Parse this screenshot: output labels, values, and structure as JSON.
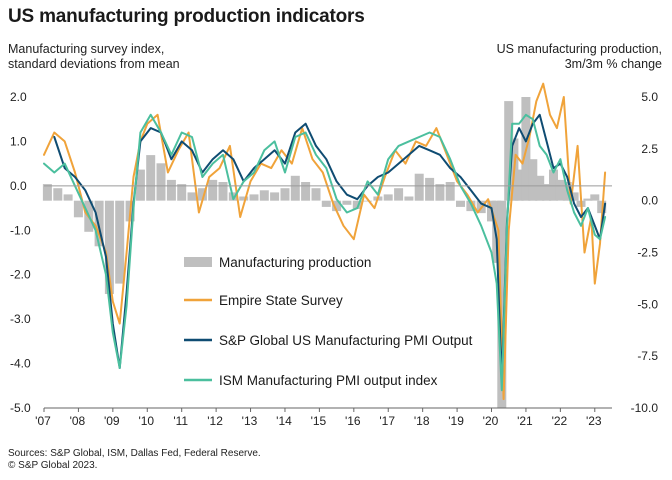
{
  "title": "US manufacturing production indicators",
  "left_axis_label": [
    "Manufacturing survey index,",
    "standard deviations from mean"
  ],
  "right_axis_label": [
    "US manufacturing production,",
    "3m/3m % change"
  ],
  "source_lines": [
    "Sources: S&P Global, ISM, Dallas Fed, Federal Reserve.",
    "© S&P Global 2023."
  ],
  "chart_data": {
    "type": "line",
    "x_tick_labels": [
      "'07",
      "'08",
      "'09",
      "'10",
      "'11",
      "'12",
      "'13",
      "'14",
      "'15",
      "'16",
      "'17",
      "'18",
      "'19",
      "'20",
      "'21",
      "'22",
      "'23"
    ],
    "x_range": [
      2007.0,
      2023.5
    ],
    "y_left": {
      "ticks": [
        "2.0",
        "1.0",
        "0.0",
        "-1.0",
        "-2.0",
        "-3.0",
        "-4.0",
        "-5.0"
      ],
      "range": [
        -5.0,
        2.0
      ]
    },
    "y_right": {
      "ticks": [
        "5.0",
        "2.5",
        "0.0",
        "-2.5",
        "-5.0",
        "-7.5",
        "-10.0"
      ],
      "range": [
        -10.0,
        5.0
      ]
    },
    "grid": false,
    "legend_placement": "center-left",
    "series": [
      {
        "name": "Manufacturing production",
        "type": "bar",
        "axis": "right",
        "color": "#bfbfbf",
        "x": [
          2007.1,
          2007.4,
          2007.7,
          2008.0,
          2008.3,
          2008.6,
          2008.9,
          2009.2,
          2009.5,
          2009.8,
          2010.1,
          2010.4,
          2010.7,
          2011.0,
          2011.3,
          2011.6,
          2011.9,
          2012.2,
          2012.5,
          2012.8,
          2013.1,
          2013.4,
          2013.7,
          2014.0,
          2014.3,
          2014.6,
          2014.9,
          2015.2,
          2015.5,
          2015.8,
          2016.1,
          2016.4,
          2016.7,
          2017.0,
          2017.3,
          2017.6,
          2017.9,
          2018.2,
          2018.5,
          2018.8,
          2019.1,
          2019.4,
          2019.7,
          2020.0,
          2020.15,
          2020.3,
          2020.5,
          2020.65,
          2020.8,
          2021.0,
          2021.2,
          2021.4,
          2021.6,
          2021.8,
          2022.0,
          2022.2,
          2022.4,
          2022.6,
          2022.8,
          2023.0,
          2023.2
        ],
        "values": [
          0.8,
          0.6,
          0.3,
          -0.8,
          -1.5,
          -2.2,
          -4.5,
          -4.0,
          -1.0,
          1.5,
          2.2,
          1.8,
          1.0,
          0.8,
          0.4,
          0.6,
          1.0,
          0.9,
          0.4,
          0.2,
          0.3,
          0.5,
          0.4,
          0.6,
          1.2,
          0.9,
          0.6,
          -0.3,
          -0.5,
          -0.2,
          -0.4,
          0.0,
          0.2,
          0.3,
          0.6,
          0.2,
          1.3,
          1.1,
          0.8,
          0.9,
          -0.3,
          -0.5,
          -0.6,
          -1.0,
          -3.0,
          -10.0,
          4.8,
          3.0,
          1.5,
          5.0,
          2.0,
          1.2,
          0.8,
          1.5,
          1.0,
          0.9,
          0.4,
          -0.3,
          0.1,
          0.3,
          -0.6
        ]
      },
      {
        "name": "Empire State Survey",
        "type": "line",
        "axis": "left",
        "color": "#f0a33a",
        "x": [
          2007.0,
          2007.3,
          2007.6,
          2007.9,
          2008.2,
          2008.5,
          2008.8,
          2009.0,
          2009.2,
          2009.4,
          2009.6,
          2009.8,
          2010.0,
          2010.3,
          2010.6,
          2010.9,
          2011.2,
          2011.5,
          2011.8,
          2012.1,
          2012.4,
          2012.7,
          2013.0,
          2013.3,
          2013.6,
          2013.9,
          2014.2,
          2014.5,
          2014.8,
          2015.1,
          2015.4,
          2015.7,
          2016.0,
          2016.3,
          2016.6,
          2016.9,
          2017.2,
          2017.5,
          2017.8,
          2018.1,
          2018.4,
          2018.7,
          2019.0,
          2019.3,
          2019.6,
          2019.9,
          2020.2,
          2020.35,
          2020.5,
          2020.7,
          2020.9,
          2021.1,
          2021.3,
          2021.5,
          2021.7,
          2021.9,
          2022.1,
          2022.3,
          2022.5,
          2022.7,
          2022.9,
          2023.0,
          2023.15,
          2023.3
        ],
        "values": [
          0.7,
          1.2,
          1.0,
          0.3,
          -0.6,
          -0.9,
          -1.5,
          -2.6,
          -3.1,
          -1.5,
          0.2,
          1.0,
          1.4,
          1.6,
          0.3,
          0.8,
          1.2,
          -0.6,
          0.2,
          0.4,
          0.9,
          -0.7,
          0.1,
          0.5,
          0.4,
          0.8,
          0.5,
          1.3,
          0.6,
          0.3,
          -0.4,
          -0.9,
          -1.2,
          -0.2,
          -0.5,
          0.2,
          0.8,
          0.5,
          1.0,
          0.9,
          1.3,
          0.7,
          0.1,
          -0.2,
          -0.6,
          -0.3,
          -1.0,
          -4.8,
          -1.0,
          0.7,
          0.5,
          1.1,
          1.9,
          2.3,
          1.6,
          1.3,
          2.0,
          -0.4,
          0.9,
          -1.5,
          -0.7,
          -2.2,
          -1.3,
          0.3
        ]
      },
      {
        "name": "S&P Global US Manufacturing PMI Output",
        "type": "line",
        "axis": "left",
        "color": "#0f4c72",
        "x": [
          2007.3,
          2007.6,
          2007.9,
          2008.2,
          2008.5,
          2008.8,
          2009.0,
          2009.2,
          2009.4,
          2009.6,
          2009.8,
          2010.1,
          2010.4,
          2010.7,
          2011.0,
          2011.3,
          2011.6,
          2011.9,
          2012.2,
          2012.5,
          2012.8,
          2013.1,
          2013.4,
          2013.7,
          2014.0,
          2014.3,
          2014.6,
          2014.9,
          2015.2,
          2015.5,
          2015.8,
          2016.1,
          2016.4,
          2016.7,
          2017.0,
          2017.3,
          2017.6,
          2017.9,
          2018.2,
          2018.5,
          2018.8,
          2019.1,
          2019.4,
          2019.7,
          2020.0,
          2020.15,
          2020.3,
          2020.45,
          2020.6,
          2020.8,
          2021.0,
          2021.2,
          2021.4,
          2021.6,
          2021.8,
          2022.0,
          2022.2,
          2022.4,
          2022.6,
          2022.8,
          2023.0,
          2023.15,
          2023.3
        ],
        "values": [
          1.1,
          0.4,
          0.2,
          -0.1,
          -0.6,
          -1.6,
          -3.1,
          -4.1,
          -2.4,
          -0.4,
          1.0,
          1.3,
          1.2,
          0.6,
          1.0,
          0.8,
          0.3,
          0.6,
          0.8,
          0.6,
          0.1,
          0.4,
          0.6,
          0.8,
          0.5,
          1.2,
          1.4,
          0.9,
          0.6,
          0.1,
          -0.2,
          -0.3,
          0.0,
          0.2,
          0.3,
          0.5,
          0.7,
          0.9,
          0.8,
          0.7,
          0.4,
          0.2,
          -0.1,
          -0.4,
          -0.5,
          -1.2,
          -4.4,
          -0.8,
          0.9,
          1.3,
          1.0,
          1.4,
          1.6,
          1.0,
          0.4,
          0.5,
          0.2,
          -0.4,
          -0.7,
          -0.5,
          -0.9,
          -1.2,
          -0.4
        ]
      },
      {
        "name": "ISM Manufacturing PMI output index",
        "type": "line",
        "axis": "left",
        "color": "#4bbf9e",
        "x": [
          2007.0,
          2007.3,
          2007.6,
          2007.9,
          2008.2,
          2008.5,
          2008.8,
          2009.0,
          2009.2,
          2009.4,
          2009.6,
          2009.8,
          2010.1,
          2010.4,
          2010.7,
          2011.0,
          2011.3,
          2011.6,
          2011.9,
          2012.2,
          2012.5,
          2012.8,
          2013.1,
          2013.4,
          2013.7,
          2014.0,
          2014.3,
          2014.6,
          2014.9,
          2015.2,
          2015.5,
          2015.8,
          2016.1,
          2016.4,
          2016.7,
          2017.0,
          2017.3,
          2017.6,
          2017.9,
          2018.2,
          2018.5,
          2018.8,
          2019.1,
          2019.4,
          2019.7,
          2020.0,
          2020.15,
          2020.3,
          2020.45,
          2020.6,
          2020.8,
          2021.0,
          2021.2,
          2021.4,
          2021.6,
          2021.8,
          2022.0,
          2022.2,
          2022.4,
          2022.6,
          2022.8,
          2023.0,
          2023.15,
          2023.3
        ],
        "values": [
          0.5,
          0.3,
          0.5,
          0.0,
          -0.5,
          -1.0,
          -2.0,
          -3.3,
          -4.1,
          -2.7,
          -0.5,
          1.2,
          1.6,
          1.2,
          0.7,
          1.2,
          1.1,
          0.2,
          0.5,
          0.7,
          -0.3,
          0.1,
          0.3,
          0.8,
          1.0,
          0.3,
          1.1,
          1.2,
          0.7,
          0.4,
          -0.3,
          -0.6,
          -0.5,
          0.1,
          -0.2,
          0.6,
          0.9,
          1.0,
          1.1,
          1.2,
          1.1,
          0.6,
          0.0,
          -0.4,
          -0.9,
          -1.5,
          -2.2,
          -4.6,
          -0.9,
          1.4,
          1.4,
          1.6,
          1.5,
          0.9,
          0.7,
          0.3,
          0.6,
          -0.1,
          -0.6,
          -0.9,
          -0.5,
          -1.1,
          -1.2,
          -0.7
        ]
      }
    ]
  }
}
